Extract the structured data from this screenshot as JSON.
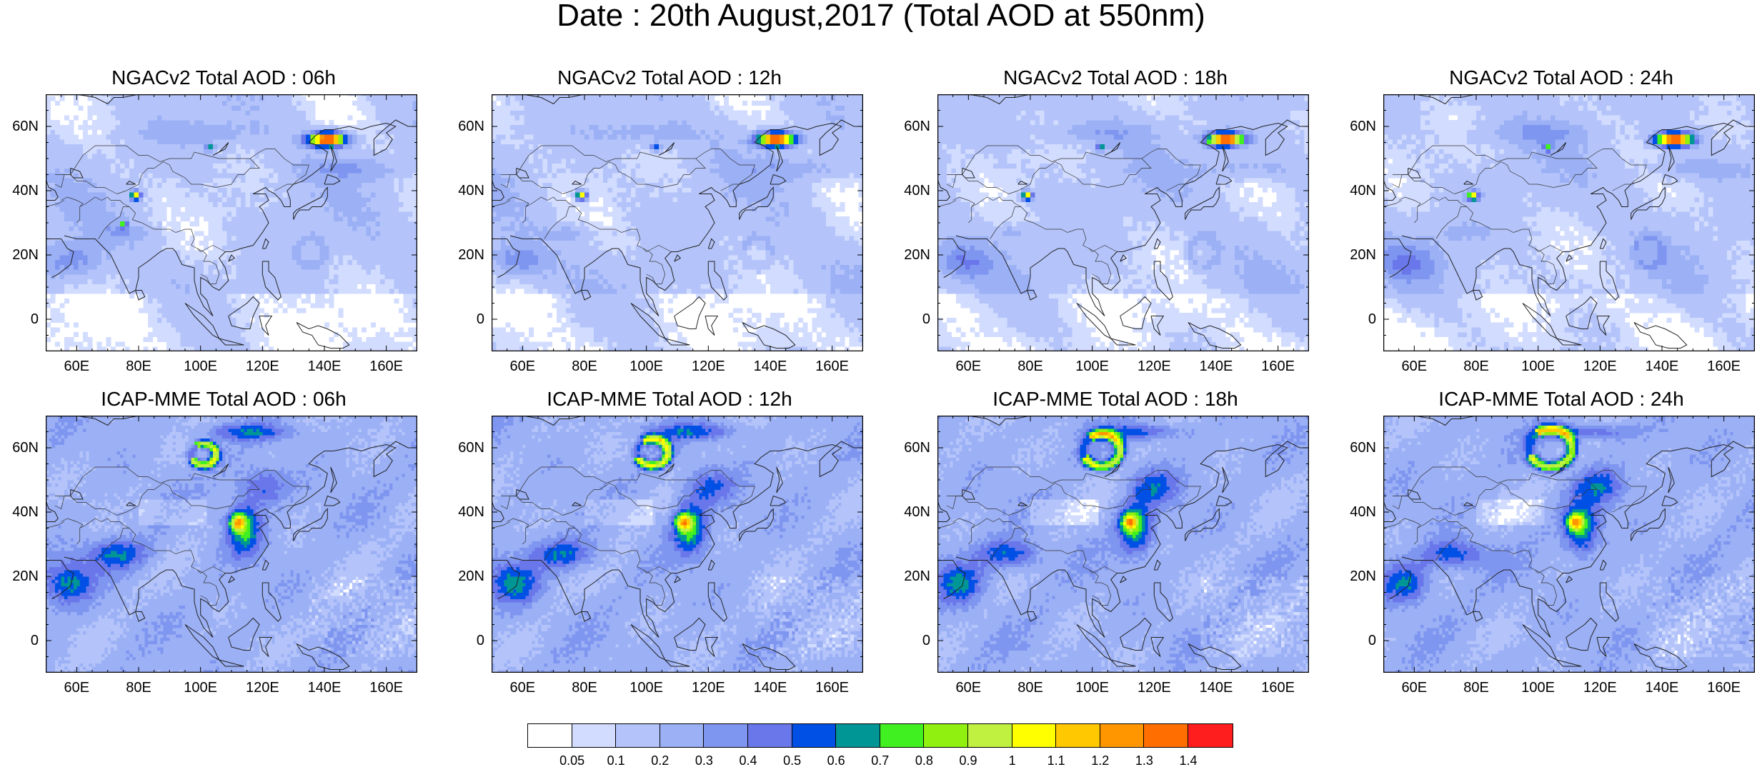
{
  "figure": {
    "title": "Date : 20th August,2017 (Total AOD at 550nm)"
  },
  "axes": {
    "lon_ticks": [
      "60E",
      "80E",
      "100E",
      "120E",
      "140E",
      "160E"
    ],
    "lat_ticks": [
      "60N",
      "40N",
      "20N",
      "0"
    ],
    "lon_range": [
      50,
      170
    ],
    "lat_range": [
      -10,
      70
    ]
  },
  "panels": [
    {
      "title": "NGACv2 Total AOD : 06h"
    },
    {
      "title": "NGACv2 Total AOD : 12h"
    },
    {
      "title": "NGACv2 Total AOD : 18h"
    },
    {
      "title": "NGACv2 Total AOD : 24h"
    },
    {
      "title": "ICAP-MME Total AOD : 06h"
    },
    {
      "title": "ICAP-MME Total AOD : 12h"
    },
    {
      "title": "ICAP-MME Total AOD : 18h"
    },
    {
      "title": "ICAP-MME Total AOD : 24h"
    }
  ],
  "colorbar": {
    "labels": [
      "0.05",
      "0.1",
      "0.2",
      "0.3",
      "0.4",
      "0.5",
      "0.6",
      "0.7",
      "0.8",
      "0.9",
      "1",
      "1.1",
      "1.2",
      "1.3",
      "1.4"
    ],
    "colors": [
      "#ffffff",
      "#d2dcff",
      "#b4c4fa",
      "#9bb0f5",
      "#7f96f0",
      "#6a77ea",
      "#0050e6",
      "#009696",
      "#40f020",
      "#90f010",
      "#c0f040",
      "#ffff00",
      "#ffc800",
      "#ff9600",
      "#ff6e00",
      "#ff1e1e"
    ]
  }
}
